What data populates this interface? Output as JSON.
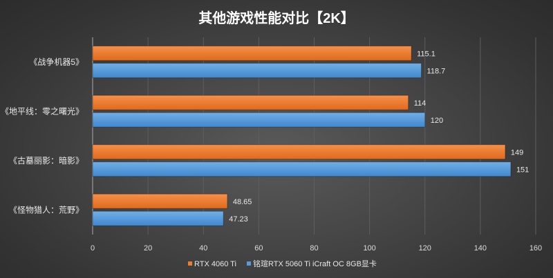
{
  "chart_data": {
    "type": "bar",
    "orientation": "horizontal",
    "title": "其他游戏性能对比【2K】",
    "categories": [
      "《战争机器5》",
      "《地平线：零之曙光》",
      "《古墓丽影：暗影》",
      "《怪物猎人：荒野》"
    ],
    "series": [
      {
        "name": "RTX 4060 Ti",
        "color": "#ed7d31",
        "values": [
          115.1,
          114,
          149,
          48.65
        ],
        "labels": [
          "115.1",
          "114",
          "149",
          "48.65"
        ]
      },
      {
        "name": "铭瑄RTX 5060 Ti iCraft OC 8GB显卡",
        "color": "#5b9bd5",
        "values": [
          118.7,
          120,
          151,
          47.23
        ],
        "labels": [
          "118.7",
          "120",
          "151",
          "47.23"
        ]
      }
    ],
    "xlim": [
      0,
      160
    ],
    "xticks": [
      0,
      20,
      40,
      60,
      80,
      100,
      120,
      140,
      160
    ],
    "xlabel": "",
    "ylabel": "",
    "grid": true,
    "legend": "bottom"
  }
}
